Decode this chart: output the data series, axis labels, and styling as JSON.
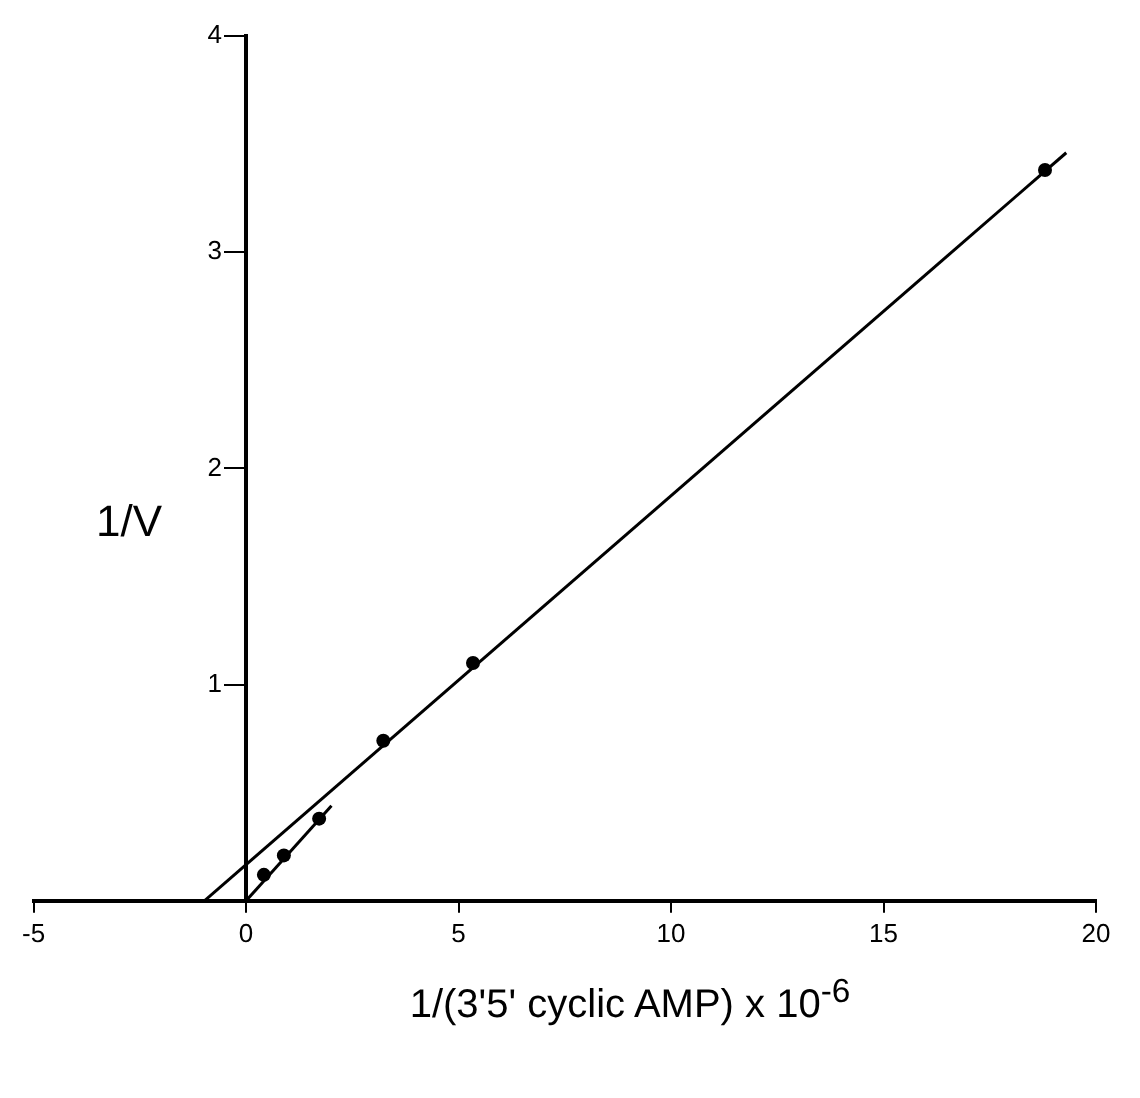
{
  "chart_data": {
    "type": "scatter",
    "xlabel": "1/(3'5' cyclic AMP) x 10$^{-6}$",
    "ylabel": "1/V",
    "xlim": [
      -5,
      20
    ],
    "xticks": [
      -5,
      0,
      5,
      10,
      15,
      20
    ],
    "ylim": [
      0,
      4
    ],
    "yticks": [
      1,
      2,
      3,
      4
    ],
    "grid": false,
    "legend": false,
    "series": [
      {
        "marker": "circle",
        "color": "#000000",
        "x": [
          0.42,
          0.89,
          1.72,
          3.23,
          5.34,
          18.8
        ],
        "values": [
          0.12,
          0.21,
          0.38,
          0.74,
          1.1,
          3.38
        ]
      },
      {
        "type": "line",
        "marker": "none",
        "line_style": "solid",
        "color": "#000000",
        "x": [
          -0.98,
          19.3
        ],
        "values": [
          0,
          3.46
        ]
      },
      {
        "type": "line",
        "marker": "none",
        "line_style": "solid",
        "color": "#000000",
        "x": [
          0,
          2.01
        ],
        "values": [
          0,
          0.44
        ]
      }
    ]
  }
}
